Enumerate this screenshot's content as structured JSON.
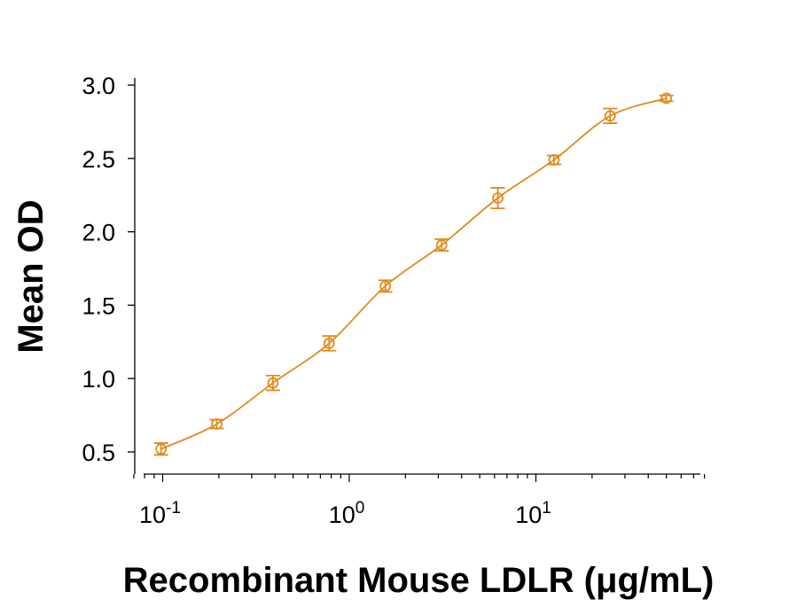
{
  "chart_data": {
    "type": "scatter",
    "title": "",
    "xlabel": "Recombinant Mouse LDLR (μg/mL)",
    "ylabel": "Mean OD",
    "x_scale": "log",
    "xlim": [
      0.07,
      80
    ],
    "ylim": [
      0.4,
      3.05
    ],
    "x_ticks": [
      {
        "value": 0.1,
        "base": "10",
        "exp": "-1"
      },
      {
        "value": 1,
        "base": "10",
        "exp": "0"
      },
      {
        "value": 10,
        "base": "10",
        "exp": "1"
      }
    ],
    "y_ticks": [
      {
        "value": 0.5,
        "label": "0.5"
      },
      {
        "value": 1.0,
        "label": "1.0"
      },
      {
        "value": 1.5,
        "label": "1.5"
      },
      {
        "value": 2.0,
        "label": "2.0"
      },
      {
        "value": 2.5,
        "label": "2.5"
      },
      {
        "value": 3.0,
        "label": "3.0"
      }
    ],
    "grid": false,
    "legend": "none",
    "color": "#e08a1e",
    "series": [
      {
        "x": [
          0.098,
          0.195,
          0.39,
          0.78,
          1.56,
          3.125,
          6.25,
          12.5,
          25,
          50
        ],
        "y": [
          0.52,
          0.69,
          0.97,
          1.24,
          1.63,
          1.91,
          2.23,
          2.49,
          2.79,
          2.91
        ],
        "error": [
          0.04,
          0.03,
          0.05,
          0.05,
          0.04,
          0.04,
          0.07,
          0.03,
          0.05,
          0.02
        ],
        "fit_curve": true
      }
    ]
  }
}
